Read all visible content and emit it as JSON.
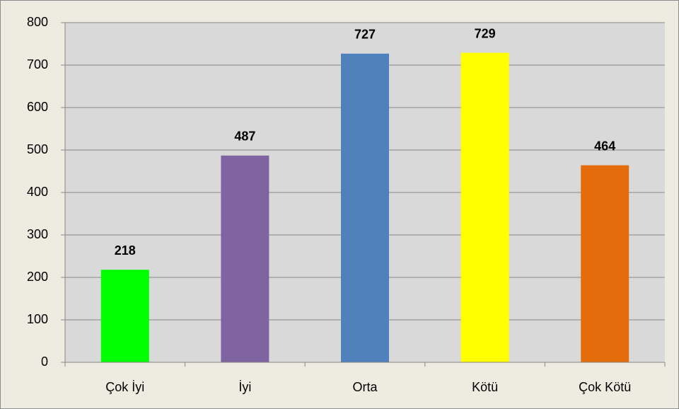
{
  "chart_data": {
    "type": "bar",
    "categories": [
      "Çok İyi",
      "İyi",
      "Orta",
      "Kötü",
      "Çok Kötü"
    ],
    "values": [
      218,
      487,
      727,
      729,
      464
    ],
    "colors": [
      "#00ff00",
      "#8064a2",
      "#4f81bd",
      "#ffff00",
      "#e46c0a"
    ],
    "ylim": [
      0,
      800
    ],
    "yticks": [
      0,
      100,
      200,
      300,
      400,
      500,
      600,
      700,
      800
    ],
    "grid": true
  }
}
